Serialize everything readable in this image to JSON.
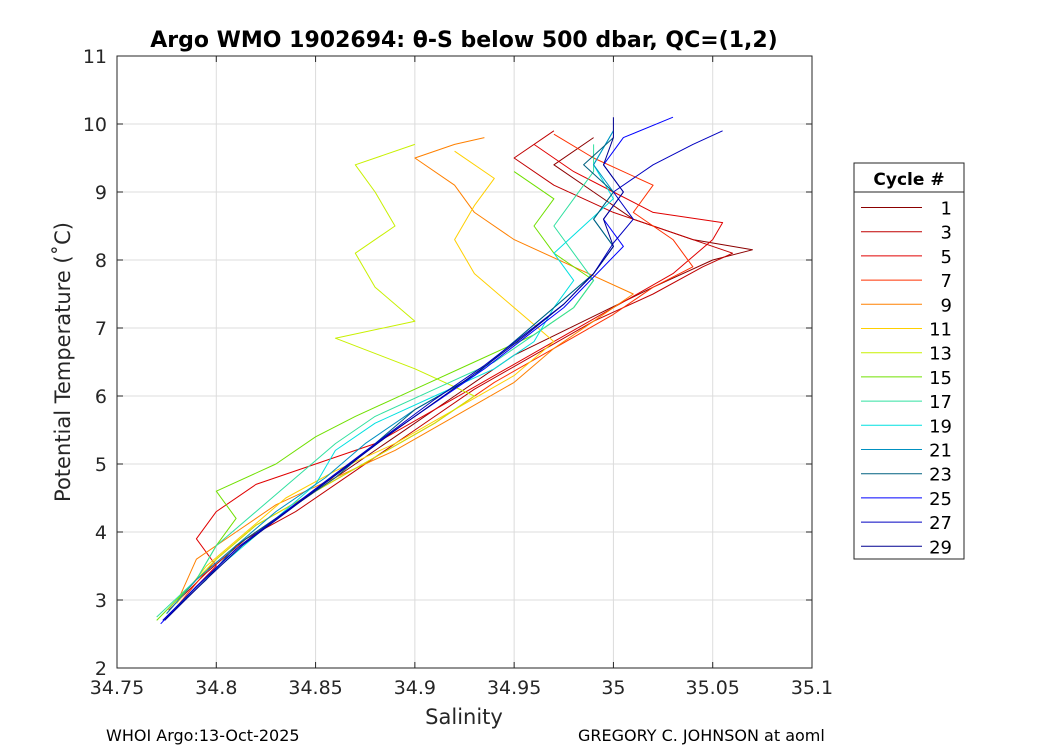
{
  "chart_data": {
    "type": "line",
    "title": "Argo WMO 1902694: θ-S below 500 dbar,  QC=(1,2)",
    "xlabel": "Salinity",
    "ylabel": "Potential Temperature (˚C)",
    "xlim": [
      34.75,
      35.1
    ],
    "ylim": [
      2,
      11
    ],
    "xticks": [
      34.75,
      34.8,
      34.85,
      34.9,
      34.95,
      35,
      35.05,
      35.1
    ],
    "xtick_labels": [
      "34.75",
      "34.8",
      "34.85",
      "34.9",
      "34.95",
      "35",
      "35.05",
      "35.1"
    ],
    "yticks": [
      2,
      3,
      4,
      5,
      6,
      7,
      8,
      9,
      10,
      11
    ],
    "ytick_labels": [
      "2",
      "3",
      "4",
      "5",
      "6",
      "7",
      "8",
      "9",
      "10",
      "11"
    ],
    "grid": true,
    "legend_title": "Cycle #",
    "legend_position": "right-outside",
    "series": [
      {
        "name": "1",
        "color": "#8b0000",
        "points": [
          [
            34.775,
            2.8
          ],
          [
            34.79,
            3.3
          ],
          [
            34.81,
            3.8
          ],
          [
            34.83,
            4.2
          ],
          [
            34.86,
            4.8
          ],
          [
            34.89,
            5.4
          ],
          [
            34.92,
            6.0
          ],
          [
            34.95,
            6.6
          ],
          [
            34.985,
            7.1
          ],
          [
            35.02,
            7.6
          ],
          [
            35.05,
            8.0
          ],
          [
            35.07,
            8.15
          ],
          [
            35.04,
            8.3
          ],
          [
            35.01,
            8.6
          ],
          [
            34.99,
            9.0
          ],
          [
            34.97,
            9.4
          ],
          [
            34.99,
            9.8
          ]
        ]
      },
      {
        "name": "3",
        "color": "#c00000",
        "points": [
          [
            34.776,
            2.85
          ],
          [
            34.795,
            3.4
          ],
          [
            34.815,
            3.9
          ],
          [
            34.84,
            4.3
          ],
          [
            34.87,
            4.9
          ],
          [
            34.9,
            5.5
          ],
          [
            34.93,
            6.1
          ],
          [
            34.96,
            6.6
          ],
          [
            34.99,
            7.1
          ],
          [
            35.02,
            7.5
          ],
          [
            35.045,
            7.9
          ],
          [
            35.06,
            8.1
          ],
          [
            35.03,
            8.4
          ],
          [
            35.0,
            8.7
          ],
          [
            34.97,
            9.1
          ],
          [
            34.95,
            9.5
          ],
          [
            34.97,
            9.9
          ]
        ]
      },
      {
        "name": "5",
        "color": "#e00000",
        "points": [
          [
            34.78,
            2.9
          ],
          [
            34.8,
            3.5
          ],
          [
            34.79,
            3.9
          ],
          [
            34.8,
            4.3
          ],
          [
            34.82,
            4.7
          ],
          [
            34.85,
            5.0
          ],
          [
            34.88,
            5.3
          ],
          [
            34.91,
            5.8
          ],
          [
            34.94,
            6.3
          ],
          [
            34.97,
            6.8
          ],
          [
            35.0,
            7.3
          ],
          [
            35.03,
            7.8
          ],
          [
            35.05,
            8.3
          ],
          [
            35.055,
            8.55
          ],
          [
            35.02,
            8.7
          ],
          [
            35.0,
            9.0
          ],
          [
            34.98,
            9.3
          ],
          [
            34.96,
            9.7
          ]
        ]
      },
      {
        "name": "7",
        "color": "#ff3000",
        "points": [
          [
            34.78,
            2.9
          ],
          [
            34.8,
            3.6
          ],
          [
            34.82,
            4.1
          ],
          [
            34.85,
            4.6
          ],
          [
            34.88,
            5.1
          ],
          [
            34.91,
            5.6
          ],
          [
            34.94,
            6.2
          ],
          [
            34.97,
            6.7
          ],
          [
            35.0,
            7.2
          ],
          [
            35.02,
            7.6
          ],
          [
            35.04,
            7.9
          ],
          [
            35.03,
            8.3
          ],
          [
            35.01,
            8.7
          ],
          [
            35.02,
            9.1
          ],
          [
            34.99,
            9.5
          ],
          [
            34.97,
            9.85
          ]
        ]
      },
      {
        "name": "9",
        "color": "#ff8000",
        "points": [
          [
            34.78,
            2.95
          ],
          [
            34.79,
            3.6
          ],
          [
            34.81,
            4.0
          ],
          [
            34.83,
            4.4
          ],
          [
            34.86,
            4.8
          ],
          [
            34.89,
            5.2
          ],
          [
            34.92,
            5.7
          ],
          [
            34.95,
            6.2
          ],
          [
            34.97,
            6.7
          ],
          [
            34.99,
            7.1
          ],
          [
            35.01,
            7.5
          ],
          [
            34.98,
            7.9
          ],
          [
            34.95,
            8.3
          ],
          [
            34.93,
            8.7
          ],
          [
            34.92,
            9.1
          ],
          [
            34.9,
            9.5
          ],
          [
            34.92,
            9.7
          ],
          [
            34.935,
            9.8
          ]
        ]
      },
      {
        "name": "11",
        "color": "#ffd000",
        "points": [
          [
            34.78,
            2.95
          ],
          [
            34.795,
            3.5
          ],
          [
            34.815,
            4.0
          ],
          [
            34.835,
            4.5
          ],
          [
            34.86,
            4.9
          ],
          [
            34.89,
            5.3
          ],
          [
            34.92,
            5.8
          ],
          [
            34.95,
            6.3
          ],
          [
            34.97,
            6.8
          ],
          [
            34.95,
            7.3
          ],
          [
            34.93,
            7.8
          ],
          [
            34.92,
            8.3
          ],
          [
            34.93,
            8.8
          ],
          [
            34.94,
            9.2
          ],
          [
            34.92,
            9.6
          ]
        ]
      },
      {
        "name": "13",
        "color": "#c8f000",
        "points": [
          [
            34.78,
            3.0
          ],
          [
            34.8,
            3.6
          ],
          [
            34.82,
            4.1
          ],
          [
            34.85,
            4.6
          ],
          [
            34.88,
            5.1
          ],
          [
            34.91,
            5.6
          ],
          [
            34.93,
            6.0
          ],
          [
            34.9,
            6.4
          ],
          [
            34.86,
            6.85
          ],
          [
            34.9,
            7.1
          ],
          [
            34.88,
            7.6
          ],
          [
            34.87,
            8.1
          ],
          [
            34.89,
            8.5
          ],
          [
            34.88,
            9.0
          ],
          [
            34.87,
            9.4
          ],
          [
            34.9,
            9.7
          ]
        ]
      },
      {
        "name": "15",
        "color": "#70e000",
        "points": [
          [
            34.77,
            2.7
          ],
          [
            34.79,
            3.3
          ],
          [
            34.8,
            3.8
          ],
          [
            34.81,
            4.2
          ],
          [
            34.8,
            4.6
          ],
          [
            34.83,
            5.0
          ],
          [
            34.85,
            5.4
          ],
          [
            34.87,
            5.7
          ],
          [
            34.9,
            6.1
          ],
          [
            34.93,
            6.5
          ],
          [
            34.96,
            6.9
          ],
          [
            34.98,
            7.3
          ],
          [
            34.99,
            7.7
          ],
          [
            34.97,
            8.1
          ],
          [
            34.96,
            8.5
          ],
          [
            34.97,
            8.9
          ],
          [
            34.95,
            9.3
          ]
        ]
      },
      {
        "name": "17",
        "color": "#30e0a0",
        "points": [
          [
            34.77,
            2.75
          ],
          [
            34.79,
            3.3
          ],
          [
            34.8,
            3.8
          ],
          [
            34.82,
            4.3
          ],
          [
            34.84,
            4.8
          ],
          [
            34.86,
            5.3
          ],
          [
            34.88,
            5.7
          ],
          [
            34.91,
            6.1
          ],
          [
            34.94,
            6.5
          ],
          [
            34.96,
            6.9
          ],
          [
            34.98,
            7.3
          ],
          [
            34.99,
            7.7
          ],
          [
            34.98,
            8.1
          ],
          [
            34.97,
            8.5
          ],
          [
            34.98,
            8.9
          ],
          [
            34.99,
            9.3
          ],
          [
            34.99,
            9.7
          ]
        ]
      },
      {
        "name": "19",
        "color": "#00e0e0",
        "points": [
          [
            34.775,
            2.75
          ],
          [
            34.79,
            3.2
          ],
          [
            34.81,
            3.7
          ],
          [
            34.83,
            4.2
          ],
          [
            34.85,
            4.7
          ],
          [
            34.86,
            5.2
          ],
          [
            34.88,
            5.6
          ],
          [
            34.91,
            6.0
          ],
          [
            34.94,
            6.4
          ],
          [
            34.96,
            6.8
          ],
          [
            34.97,
            7.3
          ],
          [
            34.98,
            7.7
          ],
          [
            34.97,
            8.1
          ],
          [
            34.985,
            8.5
          ],
          [
            35.0,
            8.9
          ],
          [
            34.99,
            9.4
          ],
          [
            35.0,
            9.9
          ]
        ]
      },
      {
        "name": "21",
        "color": "#0090c0",
        "points": [
          [
            34.775,
            2.8
          ],
          [
            34.79,
            3.3
          ],
          [
            34.81,
            3.8
          ],
          [
            34.83,
            4.3
          ],
          [
            34.855,
            4.8
          ],
          [
            34.875,
            5.3
          ],
          [
            34.9,
            5.8
          ],
          [
            34.93,
            6.3
          ],
          [
            34.95,
            6.8
          ],
          [
            34.97,
            7.3
          ],
          [
            34.99,
            7.8
          ],
          [
            35.0,
            8.2
          ],
          [
            34.99,
            8.6
          ],
          [
            35.0,
            9.0
          ],
          [
            34.99,
            9.4
          ],
          [
            35.0,
            9.9
          ]
        ]
      },
      {
        "name": "23",
        "color": "#006080",
        "points": [
          [
            34.775,
            2.75
          ],
          [
            34.795,
            3.3
          ],
          [
            34.81,
            3.8
          ],
          [
            34.835,
            4.3
          ],
          [
            34.86,
            4.8
          ],
          [
            34.88,
            5.3
          ],
          [
            34.9,
            5.8
          ],
          [
            34.93,
            6.3
          ],
          [
            34.95,
            6.8
          ],
          [
            34.97,
            7.3
          ],
          [
            34.99,
            7.8
          ],
          [
            35.0,
            8.2
          ],
          [
            34.99,
            8.6
          ],
          [
            35.0,
            9.0
          ],
          [
            34.985,
            9.4
          ],
          [
            35.0,
            9.8
          ]
        ]
      },
      {
        "name": "25",
        "color": "#0000ff",
        "points": [
          [
            34.772,
            2.65
          ],
          [
            34.79,
            3.2
          ],
          [
            34.81,
            3.75
          ],
          [
            34.835,
            4.3
          ],
          [
            34.86,
            4.85
          ],
          [
            34.885,
            5.4
          ],
          [
            34.91,
            5.9
          ],
          [
            34.935,
            6.4
          ],
          [
            34.955,
            6.85
          ],
          [
            34.975,
            7.3
          ],
          [
            34.99,
            7.75
          ],
          [
            35.005,
            8.2
          ],
          [
            34.995,
            8.6
          ],
          [
            35.005,
            9.0
          ],
          [
            34.995,
            9.4
          ],
          [
            35.005,
            9.8
          ],
          [
            35.03,
            10.1
          ]
        ]
      },
      {
        "name": "27",
        "color": "#0000c0",
        "points": [
          [
            34.773,
            2.7
          ],
          [
            34.792,
            3.25
          ],
          [
            34.812,
            3.8
          ],
          [
            34.837,
            4.35
          ],
          [
            34.862,
            4.9
          ],
          [
            34.887,
            5.45
          ],
          [
            34.91,
            5.95
          ],
          [
            34.935,
            6.45
          ],
          [
            34.955,
            6.9
          ],
          [
            34.975,
            7.35
          ],
          [
            34.99,
            7.8
          ],
          [
            35.0,
            8.25
          ],
          [
            35.01,
            8.6
          ],
          [
            35.0,
            9.0
          ],
          [
            35.02,
            9.4
          ],
          [
            35.04,
            9.7
          ],
          [
            35.055,
            9.9
          ]
        ]
      },
      {
        "name": "29",
        "color": "#000090",
        "points": [
          [
            34.774,
            2.7
          ],
          [
            34.793,
            3.25
          ],
          [
            34.813,
            3.8
          ],
          [
            34.838,
            4.35
          ],
          [
            34.863,
            4.9
          ],
          [
            34.888,
            5.45
          ],
          [
            34.912,
            5.95
          ],
          [
            34.936,
            6.45
          ],
          [
            34.956,
            6.9
          ],
          [
            34.975,
            7.35
          ],
          [
            34.99,
            7.8
          ],
          [
            35.0,
            8.2
          ],
          [
            34.995,
            8.6
          ],
          [
            35.005,
            9.0
          ],
          [
            34.995,
            9.4
          ],
          [
            35.0,
            9.8
          ],
          [
            35.0,
            10.1
          ]
        ]
      }
    ]
  },
  "footer": {
    "left": "WHOI Argo:13-Oct-2025",
    "right": "GREGORY C. JOHNSON at aoml"
  }
}
